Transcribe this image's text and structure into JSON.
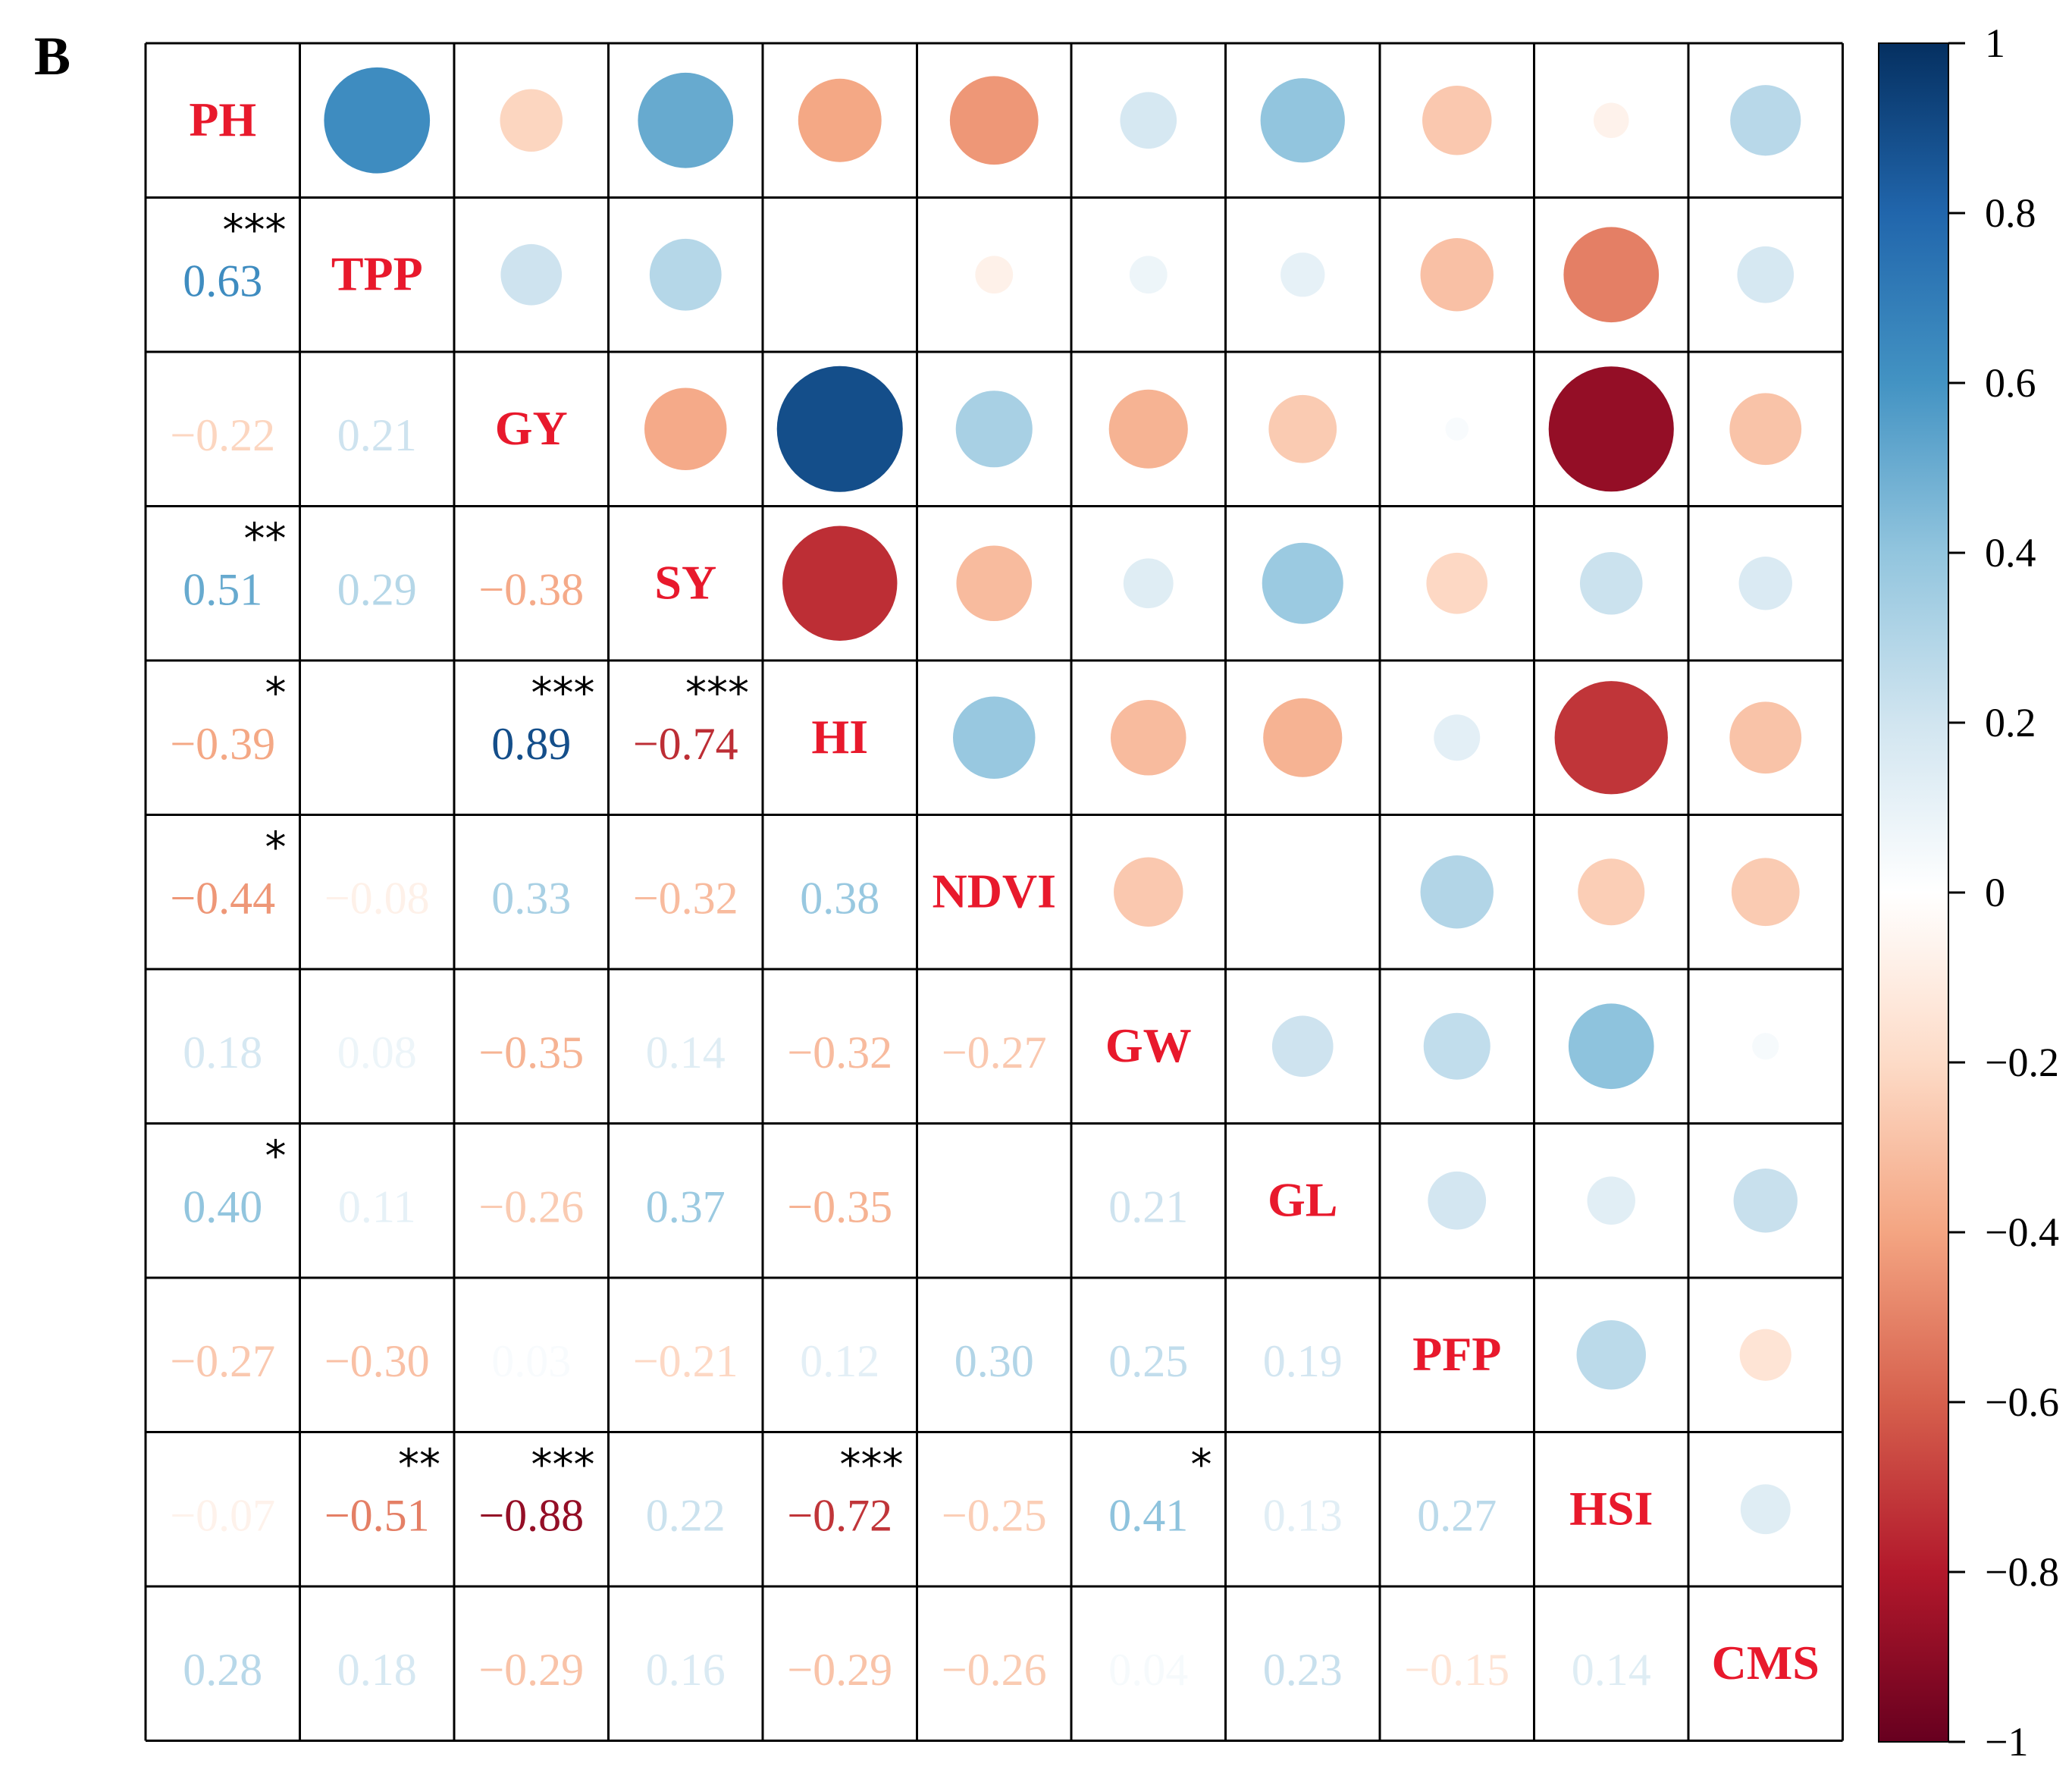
{
  "panel_label": "B",
  "colors": {
    "label": "#e8192c",
    "grid": "#000000",
    "stars": "#000000"
  },
  "chart_data": {
    "type": "heatmap",
    "variables": [
      "PH",
      "TPP",
      "GY",
      "SY",
      "HI",
      "NDVI",
      "GW",
      "GL",
      "PFP",
      "HSI",
      "CMS"
    ],
    "lower_triangle": [
      [],
      [
        "0.63"
      ],
      [
        "−0.22",
        "0.21"
      ],
      [
        "0.51",
        "0.29",
        "−0.38"
      ],
      [
        "−0.39",
        "",
        "0.89",
        "−0.74"
      ],
      [
        "−0.44",
        "−0.08",
        "0.33",
        "−0.32",
        "0.38"
      ],
      [
        "0.18",
        "0.08",
        "−0.35",
        "0.14",
        "−0.32",
        "−0.27"
      ],
      [
        "0.40",
        "0.11",
        "−0.26",
        "0.37",
        "−0.35",
        "",
        "0.21"
      ],
      [
        "−0.27",
        "−0.30",
        "0.03",
        "−0.21",
        "0.12",
        "0.30",
        "0.25",
        "0.19"
      ],
      [
        "−0.07",
        "−0.51",
        "−0.88",
        "0.22",
        "−0.72",
        "−0.25",
        "0.41",
        "0.13",
        "0.27"
      ],
      [
        "0.28",
        "0.18",
        "−0.29",
        "0.16",
        "−0.29",
        "−0.26",
        "0.04",
        "0.23",
        "−0.15",
        "0.14"
      ]
    ],
    "matrix": [
      [
        1,
        0.63,
        -0.22,
        0.51,
        -0.39,
        -0.44,
        0.18,
        0.4,
        -0.27,
        -0.07,
        0.28
      ],
      [
        0.63,
        1,
        0.21,
        0.29,
        0.0,
        -0.08,
        0.08,
        0.11,
        -0.3,
        -0.51,
        0.18
      ],
      [
        -0.22,
        0.21,
        1,
        -0.38,
        0.89,
        0.33,
        -0.35,
        -0.26,
        0.03,
        -0.88,
        -0.29
      ],
      [
        0.51,
        0.29,
        -0.38,
        1,
        -0.74,
        -0.32,
        0.14,
        0.37,
        -0.21,
        0.22,
        0.16
      ],
      [
        -0.39,
        0.0,
        0.89,
        -0.74,
        1,
        0.38,
        -0.32,
        -0.35,
        0.12,
        -0.72,
        -0.29
      ],
      [
        -0.44,
        -0.08,
        0.33,
        -0.32,
        0.38,
        1,
        -0.27,
        0.0,
        0.3,
        -0.25,
        -0.26
      ],
      [
        0.18,
        0.08,
        -0.35,
        0.14,
        -0.32,
        -0.27,
        1,
        0.21,
        0.25,
        0.41,
        0.04
      ],
      [
        0.4,
        0.11,
        -0.26,
        0.37,
        -0.35,
        0.0,
        0.21,
        1,
        0.19,
        0.13,
        0.23
      ],
      [
        -0.27,
        -0.3,
        0.03,
        -0.21,
        0.12,
        0.3,
        0.25,
        0.19,
        1,
        0.27,
        -0.15
      ],
      [
        -0.07,
        -0.51,
        -0.88,
        0.22,
        -0.72,
        -0.25,
        0.41,
        0.13,
        0.27,
        1,
        0.14
      ],
      [
        0.28,
        0.18,
        -0.29,
        0.16,
        -0.29,
        -0.26,
        0.04,
        0.23,
        -0.15,
        0.14,
        1
      ]
    ],
    "significance": [
      {
        "row": 1,
        "col": 0,
        "stars": "***"
      },
      {
        "row": 3,
        "col": 0,
        "stars": "**"
      },
      {
        "row": 4,
        "col": 0,
        "stars": "*"
      },
      {
        "row": 4,
        "col": 2,
        "stars": "***"
      },
      {
        "row": 4,
        "col": 3,
        "stars": "***"
      },
      {
        "row": 5,
        "col": 0,
        "stars": "*"
      },
      {
        "row": 7,
        "col": 0,
        "stars": "*"
      },
      {
        "row": 9,
        "col": 1,
        "stars": "**"
      },
      {
        "row": 9,
        "col": 2,
        "stars": "***"
      },
      {
        "row": 9,
        "col": 4,
        "stars": "***"
      },
      {
        "row": 9,
        "col": 6,
        "stars": "*"
      }
    ],
    "colorbar": {
      "range": [
        -1,
        1
      ],
      "ticks": [
        "1",
        "0.8",
        "0.6",
        "0.4",
        "0.2",
        "0",
        "−0.2",
        "−0.4",
        "−0.6",
        "−0.8",
        "−1"
      ],
      "tick_values": [
        1,
        0.8,
        0.6,
        0.4,
        0.2,
        0,
        -0.2,
        -0.4,
        -0.6,
        -0.8,
        -1
      ],
      "palette": [
        "#67001f",
        "#b2182b",
        "#d6604d",
        "#f4a582",
        "#fddbc7",
        "#ffffff",
        "#d1e5f0",
        "#92c5de",
        "#4393c3",
        "#2166ac",
        "#053061"
      ]
    }
  }
}
